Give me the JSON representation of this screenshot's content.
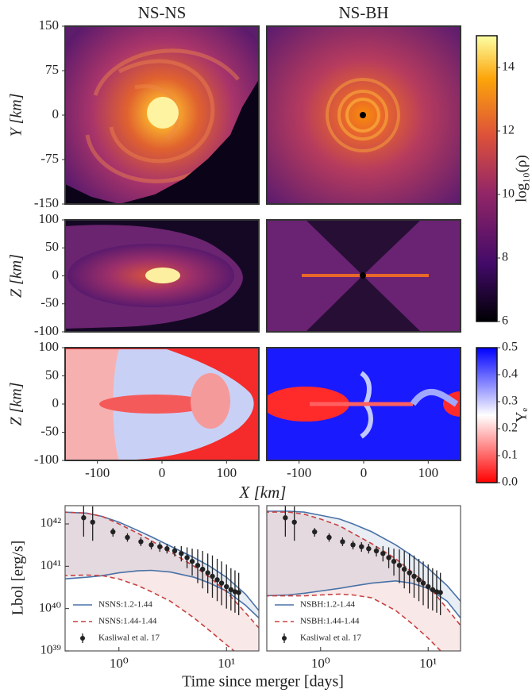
{
  "shared_labels": {
    "x_km": "X [km]",
    "time": "Time since merger [days]",
    "lbol": "Lbol [erg/s]"
  },
  "chart_data": [
    {
      "type": "image",
      "title": "NS-NS",
      "ylabel": "Y [km]",
      "ylim": [
        -150,
        150
      ],
      "yticks": [
        150,
        75,
        0,
        -75,
        -150
      ]
    },
    {
      "type": "image",
      "title": "NS-BH"
    },
    {
      "type": "image",
      "ylabel": "Z [km]",
      "ylim": [
        -100,
        100
      ],
      "yticks": [
        100,
        50,
        0,
        -50,
        -100
      ]
    },
    {
      "type": "image"
    },
    {
      "type": "image",
      "ylabel": "Z [km]",
      "ylim": [
        -100,
        100
      ],
      "yticks": [
        100,
        50,
        0,
        -50,
        -100
      ],
      "xlim": [
        -150,
        150
      ],
      "xticks": [
        -100,
        0,
        100
      ]
    },
    {
      "type": "image",
      "xlim": [
        -150,
        150
      ],
      "xticks": [
        -100,
        0,
        100
      ]
    },
    {
      "type": "colorbar",
      "label": "log₁₀(ρ)",
      "cmap": "inferno",
      "ylim": [
        6,
        15
      ],
      "yticks": [
        6,
        8,
        10,
        12,
        14
      ]
    },
    {
      "type": "colorbar",
      "label": "Yₑ",
      "cmap": "bwr",
      "ylim": [
        0,
        0.5
      ],
      "yticks": [
        {
          "value": 0,
          "label": "0.0"
        },
        0.1,
        0.2,
        0.3,
        0.4,
        0.5
      ]
    },
    {
      "type": "line",
      "log_x": true,
      "log_y": true,
      "legend": "lower left",
      "xlim": [
        0.316,
        20
      ],
      "xticks": [
        {
          "value": 1,
          "label": "10⁰"
        },
        {
          "value": 10,
          "label": "10¹"
        }
      ],
      "ylim": [
        1e+39,
        2.7e+42
      ],
      "yticks": [
        {
          "value": 1e+39,
          "label": "10³⁹"
        },
        {
          "value": 1e+40,
          "label": "10⁴⁰"
        },
        {
          "value": 1e+41,
          "label": "10⁴¹"
        },
        {
          "value": 1e+42,
          "label": "10⁴²"
        }
      ],
      "x": [
        0.3,
        0.5,
        0.7,
        1,
        1.5,
        2,
        3,
        5,
        7,
        10,
        15,
        20
      ],
      "series": [
        {
          "name": "NSNS:1.2-1.44",
          "color": "#4a72a8",
          "linestyle": "solid",
          "values": [
            1.9e+42,
            1.8e+42,
            1.5e+42,
            1.1e+42,
            7e+41,
            5e+41,
            3e+41,
            1.6e+41,
            1e+41,
            5.5e+40,
            2.2e+40,
            9e+39
          ],
          "lower_values": [
            5e+40,
            5.5e+40,
            6e+40,
            7e+40,
            7.8e+40,
            8e+40,
            7.3e+40,
            5.5e+40,
            4e+40,
            2.6e+40,
            1.2e+40,
            6e+39
          ]
        },
        {
          "name": "NSNS:1.44-1.44",
          "color": "#c84040",
          "linestyle": "dashed",
          "values": [
            1.9e+42,
            1.8e+42,
            1.5e+42,
            1e+42,
            6e+41,
            4e+41,
            2.2e+41,
            1e+41,
            5.5e+40,
            2.5e+40,
            8e+39,
            3.5e+39
          ],
          "lower_values": [
            6e+40,
            6.2e+40,
            6e+40,
            5e+40,
            3.5e+40,
            2.5e+40,
            1.5e+40,
            6e+39,
            3e+39,
            1.4e+39,
            6e+38,
            3e+38
          ]
        }
      ],
      "observations": {
        "name": "Kasliwal et al. 17",
        "color": "#222222",
        "x": [
          0.47,
          0.57,
          0.88,
          1.2,
          1.6,
          2.0,
          2.4,
          2.8,
          3.3,
          3.8,
          4.3,
          4.8,
          5.4,
          6.0,
          6.7,
          7.4,
          8.2,
          9.0,
          10,
          11,
          12,
          13
        ],
        "y": [
          1.4e+42,
          1.1e+42,
          6.5e+41,
          4.8e+41,
          3.8e+41,
          3.2e+41,
          2.9e+41,
          2.6e+41,
          2.3e+41,
          2e+41,
          1.6e+41,
          1.3e+41,
          1.05e+41,
          8.5e+40,
          7e+40,
          5.8e+40,
          4.8e+40,
          4e+40,
          3.3e+40,
          2.8e+40,
          2.5e+40,
          2.4e+40
        ],
        "ylow": [
          5e+41,
          4e+41,
          5e+41,
          3.8e+41,
          3e+41,
          2.5e+41,
          2.2e+41,
          2e+41,
          1.7e+41,
          1.3e+41,
          9e+40,
          6e+40,
          4e+40,
          3e+40,
          2.3e+40,
          1.8e+40,
          1.5e+40,
          1.2e+40,
          1e+40,
          9e+39,
          8e+39,
          7e+39
        ],
        "yhigh": [
          3e+42,
          2.6e+42,
          8e+41,
          6e+41,
          4.8e+41,
          4e+41,
          3.7e+41,
          3.4e+41,
          3e+41,
          3e+41,
          2.8e+41,
          2.6e+41,
          2.5e+41,
          2.3e+41,
          2e+41,
          1.8e+41,
          1.5e+41,
          1.3e+41,
          1.1e+41,
          9e+40,
          8e+40,
          7e+40
        ]
      }
    },
    {
      "type": "line",
      "log_x": true,
      "log_y": true,
      "legend": "lower left",
      "xlim": [
        0.316,
        20
      ],
      "xticks": [
        {
          "value": 1,
          "label": "10⁰"
        },
        {
          "value": 10,
          "label": "10¹"
        }
      ],
      "ylim": [
        1e+39,
        2.7e+42
      ],
      "x": [
        0.3,
        0.5,
        0.7,
        1,
        1.5,
        2,
        3,
        5,
        7,
        10,
        15,
        20
      ],
      "series": [
        {
          "name": "NSBH:1.2-1.44",
          "color": "#4a72a8",
          "linestyle": "solid",
          "values": [
            2e+42,
            2e+42,
            1.9e+42,
            1.6e+42,
            1.3e+42,
            1e+42,
            6.5e+41,
            3.2e+41,
            1.8e+41,
            9e+40,
            3.5e+40,
            1.5e+40
          ],
          "lower_values": [
            2e+40,
            2.1e+40,
            2.3e+40,
            2.6e+40,
            3e+40,
            3.4e+40,
            4e+40,
            4.5e+40,
            4e+40,
            3e+40,
            1.5e+40,
            6e+39
          ]
        },
        {
          "name": "NSBH:1.44-1.44",
          "color": "#c84040",
          "linestyle": "dashed",
          "values": [
            1.9e+42,
            1.9e+42,
            1.7e+42,
            1.3e+42,
            9e+41,
            6e+41,
            3.4e+41,
            1.5e+41,
            7.5e+40,
            3.5e+40,
            1e+40,
            4e+39
          ],
          "lower_values": [
            2e+40,
            2e+40,
            2e+40,
            2.1e+40,
            2.2e+40,
            2.1e+40,
            1.8e+40,
            9e+39,
            4.5e+39,
            2e+39,
            7e+38,
            3e+38
          ]
        }
      ],
      "observations": {
        "name": "Kasliwal et al. 17",
        "color": "#222222",
        "x": [
          0.47,
          0.57,
          0.88,
          1.2,
          1.6,
          2.0,
          2.4,
          2.8,
          3.3,
          3.8,
          4.3,
          4.8,
          5.4,
          6.0,
          6.7,
          7.4,
          8.2,
          9.0,
          10,
          11,
          12,
          13
        ],
        "y": [
          1.4e+42,
          1.1e+42,
          6.5e+41,
          4.8e+41,
          3.8e+41,
          3.2e+41,
          2.9e+41,
          2.6e+41,
          2.3e+41,
          2e+41,
          1.6e+41,
          1.3e+41,
          1.05e+41,
          8.5e+40,
          7e+40,
          5.8e+40,
          4.8e+40,
          4e+40,
          3.3e+40,
          2.8e+40,
          2.5e+40,
          2.4e+40
        ],
        "ylow": [
          5e+41,
          4e+41,
          5e+41,
          3.8e+41,
          3e+41,
          2.5e+41,
          2.2e+41,
          2e+41,
          1.7e+41,
          1.3e+41,
          9e+40,
          6e+40,
          4e+40,
          3e+40,
          2.3e+40,
          1.8e+40,
          1.5e+40,
          1.2e+40,
          1e+40,
          9e+39,
          8e+39,
          7e+39
        ],
        "yhigh": [
          3e+42,
          2.6e+42,
          8e+41,
          6e+41,
          4.8e+41,
          4e+41,
          3.7e+41,
          3.4e+41,
          3e+41,
          3e+41,
          2.8e+41,
          2.6e+41,
          2.5e+41,
          2.3e+41,
          2e+41,
          1.8e+41,
          1.5e+41,
          1.3e+41,
          1.1e+41,
          9e+40,
          8e+40,
          7e+40
        ]
      }
    }
  ]
}
